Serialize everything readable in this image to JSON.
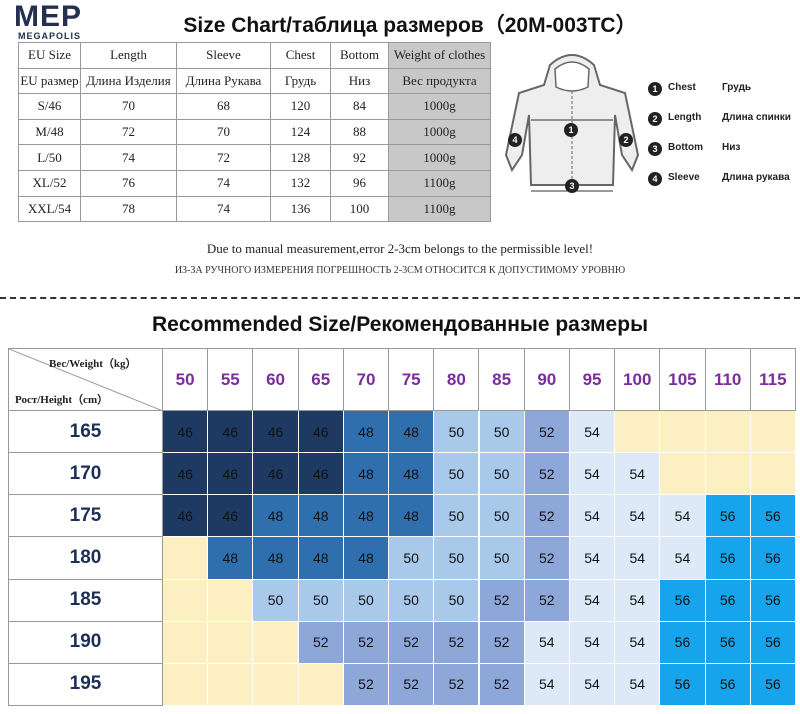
{
  "logo": {
    "mark": "MEP",
    "name": "MEGAPOLIS"
  },
  "title": "Size Chart/таблица размеров（20M-003TC）",
  "size_table": {
    "header_en": [
      "EU Size",
      "Length",
      "Sleeve",
      "Chest",
      "Bottom",
      "Weight of clothes"
    ],
    "header_ru": [
      "EU размер",
      "Длина Изделия",
      "Длина Рукава",
      "Грудь",
      "Низ",
      "Вес продукта"
    ],
    "rows": [
      [
        "S/46",
        70,
        68,
        120,
        84,
        "1000g"
      ],
      [
        "M/48",
        72,
        70,
        124,
        88,
        "1000g"
      ],
      [
        "L/50",
        74,
        72,
        128,
        92,
        "1000g"
      ],
      [
        "XL/52",
        76,
        74,
        132,
        96,
        "1100g"
      ],
      [
        "XXL/54",
        78,
        74,
        136,
        100,
        "1100g"
      ]
    ]
  },
  "legend": [
    {
      "number": 1,
      "en": "Chest",
      "ru": "Грудь"
    },
    {
      "number": 2,
      "en": "Length",
      "ru": "Длина спинки"
    },
    {
      "number": 3,
      "en": "Bottom",
      "ru": "Низ"
    },
    {
      "number": 4,
      "en": "Sleeve",
      "ru": "Длина рукава"
    }
  ],
  "notes": [
    "Due to manual measurement,error 2-3cm belongs to the permissible level!",
    "ИЗ-ЗА РУЧНОГО ИЗМЕРЕНИЯ ПОГРЕШНОСТЬ 2-3СМ ОТНОСИТСЯ К ДОПУСТИМОМУ УРОВНЮ"
  ],
  "recommended": {
    "title": "Recommended Size/Рекомендованные размеры",
    "weight_label": "Вес/Weight（kg）",
    "height_label": "Рост/Height（cm）",
    "weights": [
      50,
      55,
      60,
      65,
      70,
      75,
      80,
      85,
      90,
      95,
      100,
      105,
      110,
      115
    ],
    "heights": [
      165,
      170,
      175,
      180,
      185,
      190,
      195
    ],
    "rows": [
      [
        46,
        46,
        46,
        46,
        48,
        48,
        50,
        50,
        52,
        54,
        null,
        null,
        null,
        null
      ],
      [
        46,
        46,
        46,
        46,
        48,
        48,
        50,
        50,
        52,
        54,
        54,
        null,
        null,
        null
      ],
      [
        46,
        46,
        48,
        48,
        48,
        48,
        50,
        50,
        52,
        54,
        54,
        54,
        56,
        56
      ],
      [
        null,
        48,
        48,
        48,
        48,
        50,
        50,
        50,
        52,
        54,
        54,
        54,
        56,
        56
      ],
      [
        null,
        null,
        50,
        50,
        50,
        50,
        50,
        52,
        52,
        54,
        54,
        56,
        56,
        56
      ],
      [
        null,
        null,
        null,
        52,
        52,
        52,
        52,
        52,
        54,
        54,
        54,
        56,
        56,
        56
      ],
      [
        null,
        null,
        null,
        null,
        52,
        52,
        52,
        52,
        54,
        54,
        54,
        56,
        56,
        56
      ]
    ],
    "palette": [
      "#1e3a63",
      "#2f6fad",
      "#a8c9ea",
      "#8ea7d9",
      "#dde9f6",
      "#16a5ec"
    ],
    "empty_color": "#fcefc2"
  }
}
